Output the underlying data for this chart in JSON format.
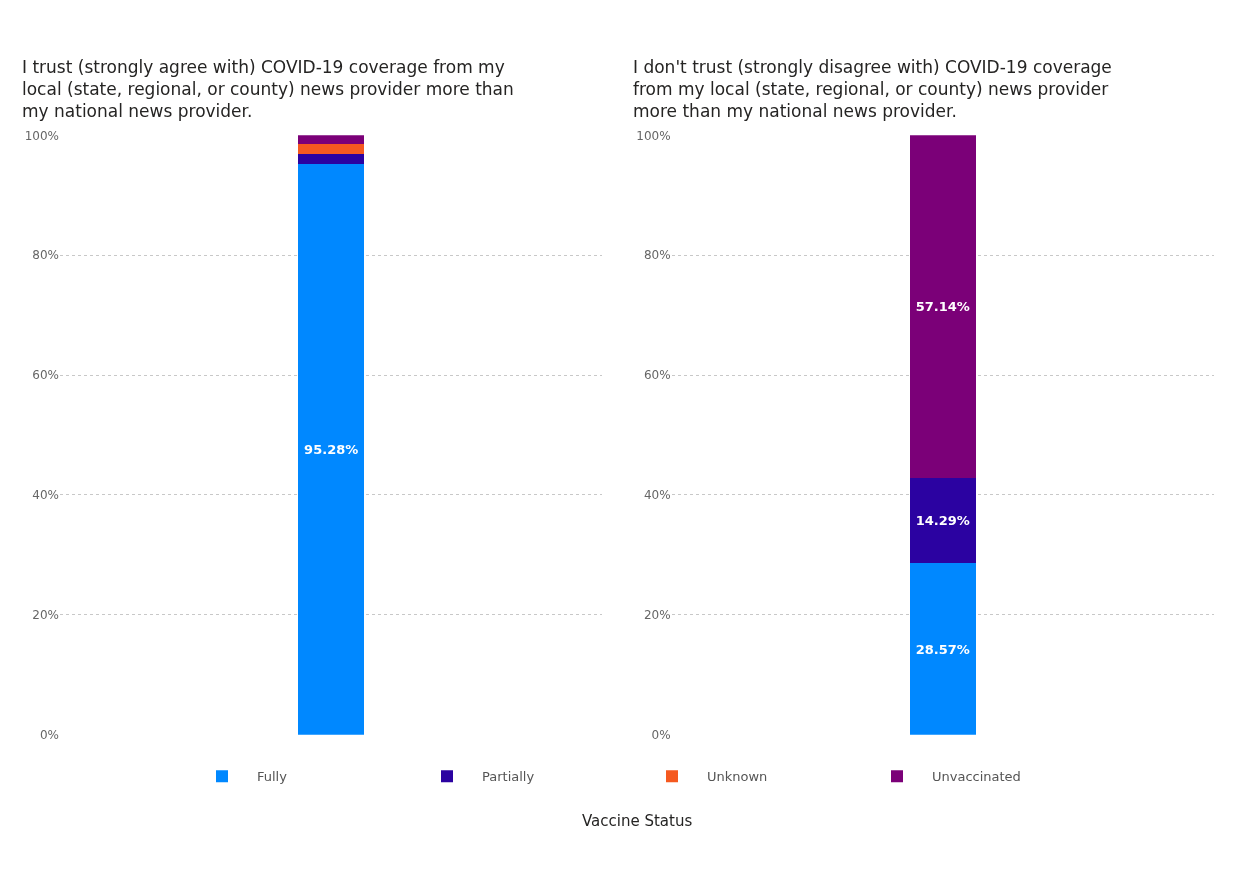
{
  "chart_data": [
    {
      "type": "bar",
      "stacked": true,
      "title": "I trust (strongly agree with) COVID-19 coverage from my local (state, regional, or county) news provider more than my national news provider.",
      "categories": [
        null
      ],
      "ylim": [
        0,
        100
      ],
      "yticks": [
        {
          "value": 0,
          "label": "0%"
        },
        {
          "value": 20,
          "label": "20%"
        },
        {
          "value": 40,
          "label": "40%"
        },
        {
          "value": 60,
          "label": "60%"
        },
        {
          "value": 80,
          "label": "80%"
        },
        {
          "value": 100,
          "label": "100%"
        }
      ],
      "grid": "y",
      "legend": "bottom",
      "legend_title": "Vaccine Status",
      "series": [
        {
          "name": "Fully",
          "color": "#0088ff",
          "values": [
            95.28
          ],
          "value_labels": [
            "95.28%"
          ]
        },
        {
          "name": "Partially",
          "color": "#2b02a1",
          "values": [
            1.6
          ],
          "value_labels": [
            null
          ]
        },
        {
          "name": "Unknown",
          "color": "#f5591f",
          "values": [
            1.6
          ],
          "value_labels": [
            null
          ]
        },
        {
          "name": "Unvaccinated",
          "color": "#7b0078",
          "values": [
            1.5
          ],
          "value_labels": [
            null
          ]
        }
      ]
    },
    {
      "type": "bar",
      "stacked": true,
      "title": "I don't trust (strongly disagree with) COVID-19 coverage from my local (state, regional, or county) news provider more than my national news provider.",
      "categories": [
        null
      ],
      "ylim": [
        0,
        100
      ],
      "yticks": [
        {
          "value": 0,
          "label": "0%"
        },
        {
          "value": 20,
          "label": "20%"
        },
        {
          "value": 40,
          "label": "40%"
        },
        {
          "value": 60,
          "label": "60%"
        },
        {
          "value": 80,
          "label": "80%"
        },
        {
          "value": 100,
          "label": "100%"
        }
      ],
      "grid": "y",
      "series": [
        {
          "name": "Fully",
          "color": "#0088ff",
          "values": [
            28.57
          ],
          "value_labels": [
            "28.57%"
          ]
        },
        {
          "name": "Partially",
          "color": "#2b02a1",
          "values": [
            14.29
          ],
          "value_labels": [
            "14.29%"
          ]
        },
        {
          "name": "Unvaccinated",
          "color": "#7b0078",
          "values": [
            57.14
          ],
          "value_labels": [
            "57.14%"
          ]
        }
      ]
    }
  ]
}
